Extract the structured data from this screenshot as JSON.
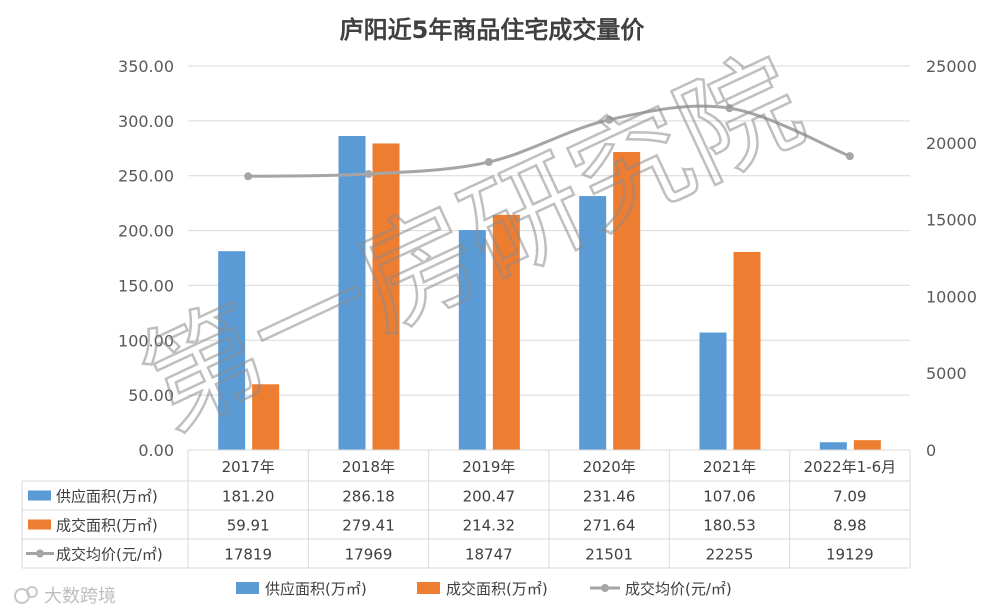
{
  "chart_data": {
    "type": "bar",
    "title": "庐阳近5年商品住宅成交量价",
    "categories": [
      "2017年",
      "2018年",
      "2019年",
      "2020年",
      "2021年",
      "2022年1-6月"
    ],
    "y_left": {
      "ylim": [
        0,
        350
      ],
      "ticks": [
        "0.00",
        "50.00",
        "100.00",
        "150.00",
        "200.00",
        "250.00",
        "300.00",
        "350.00"
      ]
    },
    "y_right": {
      "ylim": [
        0,
        25000
      ],
      "ticks": [
        "0",
        "5000",
        "10000",
        "15000",
        "20000",
        "25000"
      ]
    },
    "series": [
      {
        "name": "供应面积(万㎡)",
        "kind": "bar",
        "axis": "left",
        "color": "#5b9bd5",
        "values": [
          181.2,
          286.18,
          200.47,
          231.46,
          107.06,
          7.09
        ],
        "labels": [
          "181.20",
          "286.18",
          "200.47",
          "231.46",
          "107.06",
          "7.09"
        ]
      },
      {
        "name": "成交面积(万㎡)",
        "kind": "bar",
        "axis": "left",
        "color": "#ed7d31",
        "values": [
          59.91,
          279.41,
          214.32,
          271.64,
          180.53,
          8.98
        ],
        "labels": [
          "59.91",
          "279.41",
          "214.32",
          "271.64",
          "180.53",
          "8.98"
        ]
      },
      {
        "name": "成交均价(元/㎡)",
        "kind": "line",
        "axis": "right",
        "color": "#a5a5a5",
        "values": [
          17819,
          17969,
          18747,
          21501,
          22255,
          19129
        ],
        "labels": [
          "17819",
          "17969",
          "18747",
          "21501",
          "22255",
          "19129"
        ]
      }
    ],
    "legend_position": "bottom",
    "data_table": true,
    "grid": true
  },
  "watermark": "第一房研究院",
  "logo": {
    "text": "大数跨境",
    "icon": "logo-icon"
  }
}
